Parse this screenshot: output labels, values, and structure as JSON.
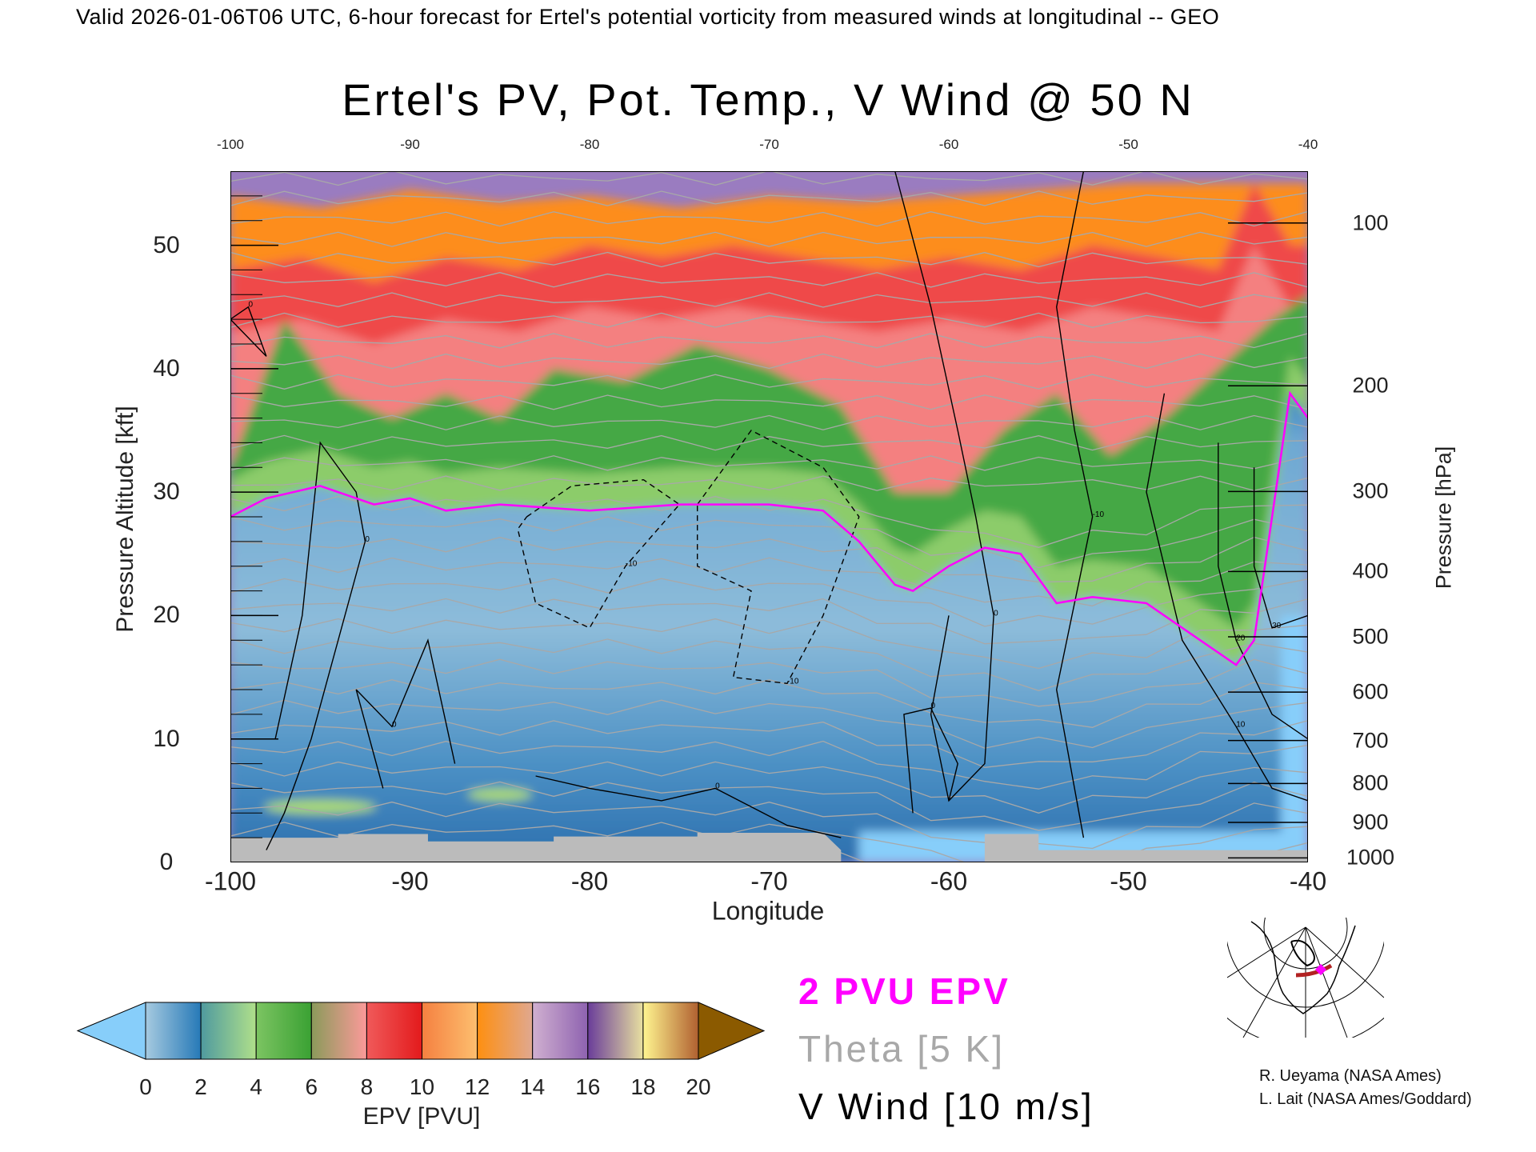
{
  "header": {
    "top_title": "Valid 2026-01-06T06 UTC, 6-hour forecast for Ertel's potential vorticity from measured winds at longitudinal -- GEO"
  },
  "chart_data": {
    "type": "heatmap",
    "title": "Ertel's PV, Pot. Temp., V Wind @ 50 N",
    "xlabel": "Longitude",
    "ylabel": "Pressure Altitude [kft]",
    "y2label": "Pressure [hPa]",
    "xlim": [
      -100,
      -40
    ],
    "ylim": [
      0,
      56
    ],
    "xticks": [
      "-100",
      "-90",
      "-80",
      "-70",
      "-60",
      "-50",
      "-40"
    ],
    "xtick_values": [
      -100,
      -90,
      -80,
      -70,
      -60,
      -50,
      -40
    ],
    "top_xticks": [
      "-100",
      "-90",
      "-80",
      "-70",
      "-60",
      "-50",
      "-40"
    ],
    "yticks": [
      "0",
      "10",
      "20",
      "30",
      "40",
      "50"
    ],
    "ytick_values": [
      0,
      10,
      20,
      30,
      40,
      50
    ],
    "y2ticks": [
      "100",
      "200",
      "300",
      "400",
      "500",
      "600",
      "700",
      "800",
      "900",
      "1000"
    ],
    "y2tick_values": [
      100,
      200,
      300,
      400,
      500,
      600,
      700,
      800,
      900,
      1000
    ],
    "tropopause_2pvu": [
      [
        -100,
        28
      ],
      [
        -98,
        29.5
      ],
      [
        -95,
        30.5
      ],
      [
        -92,
        29
      ],
      [
        -90,
        29.5
      ],
      [
        -88,
        28.5
      ],
      [
        -85,
        29
      ],
      [
        -80,
        28.5
      ],
      [
        -75,
        29
      ],
      [
        -70,
        29
      ],
      [
        -67,
        28.5
      ],
      [
        -65,
        26
      ],
      [
        -63,
        22.5
      ],
      [
        -62,
        22
      ],
      [
        -60,
        24
      ],
      [
        -58,
        25.5
      ],
      [
        -56,
        25
      ],
      [
        -54,
        21
      ],
      [
        -52,
        21.5
      ],
      [
        -49,
        21
      ],
      [
        -46,
        18
      ],
      [
        -44,
        16
      ],
      [
        -43,
        18
      ],
      [
        -42,
        28
      ],
      [
        -41,
        38
      ],
      [
        -40,
        36
      ]
    ],
    "green_top": [
      [
        -100,
        32
      ],
      [
        -97,
        44
      ],
      [
        -94,
        38
      ],
      [
        -91,
        36
      ],
      [
        -88,
        38
      ],
      [
        -85,
        36
      ],
      [
        -82,
        40
      ],
      [
        -78,
        39
      ],
      [
        -74,
        42
      ],
      [
        -70,
        40
      ],
      [
        -66,
        37
      ],
      [
        -63,
        30
      ],
      [
        -60,
        30
      ],
      [
        -57,
        35
      ],
      [
        -54,
        38
      ],
      [
        -51,
        33
      ],
      [
        -48,
        36
      ],
      [
        -45,
        40
      ],
      [
        -42,
        44
      ],
      [
        -40,
        46
      ]
    ],
    "red_top": [
      [
        -100,
        48
      ],
      [
        -96,
        49
      ],
      [
        -92,
        47
      ],
      [
        -88,
        49
      ],
      [
        -84,
        48
      ],
      [
        -80,
        50
      ],
      [
        -76,
        49
      ],
      [
        -72,
        50
      ],
      [
        -68,
        49
      ],
      [
        -64,
        48
      ],
      [
        -60,
        49
      ],
      [
        -56,
        48
      ],
      [
        -52,
        50
      ],
      [
        -48,
        49
      ],
      [
        -45,
        48
      ],
      [
        -43,
        55
      ],
      [
        -41,
        50
      ],
      [
        -40,
        50
      ]
    ],
    "orange_top": [
      [
        -100,
        54
      ],
      [
        -95,
        53
      ],
      [
        -90,
        54.5
      ],
      [
        -85,
        53.5
      ],
      [
        -80,
        54
      ],
      [
        -75,
        53
      ],
      [
        -70,
        54
      ],
      [
        -65,
        53.5
      ],
      [
        -60,
        54
      ],
      [
        -55,
        54.5
      ],
      [
        -50,
        55
      ],
      [
        -45,
        55
      ],
      [
        -40,
        55
      ]
    ],
    "vwind_contours": [
      {
        "level": "0",
        "dashed": false,
        "points": [
          [
            -100,
            10
          ],
          [
            -97.5,
            10
          ],
          [
            -96,
            20
          ],
          [
            -95,
            34
          ],
          [
            -93,
            30
          ],
          [
            -92.5,
            26
          ],
          [
            -94,
            18
          ],
          [
            -95.5,
            10
          ],
          [
            -97,
            4
          ],
          [
            -98,
            1
          ]
        ]
      },
      {
        "level": "-10",
        "dashed": true,
        "points": [
          [
            -83.5,
            28
          ],
          [
            -81,
            30.5
          ],
          [
            -77,
            31
          ],
          [
            -75,
            29
          ],
          [
            -78,
            24
          ],
          [
            -80,
            19
          ],
          [
            -83,
            21
          ],
          [
            -84,
            27
          ],
          [
            -83.5,
            28
          ]
        ]
      },
      {
        "level": "-10",
        "dashed": true,
        "points": [
          [
            -74,
            29
          ],
          [
            -71,
            35
          ],
          [
            -67,
            32
          ],
          [
            -65,
            28
          ],
          [
            -67,
            20
          ],
          [
            -69,
            14.5
          ],
          [
            -72,
            15
          ],
          [
            -71,
            22
          ],
          [
            -74,
            24
          ],
          [
            -74,
            29
          ]
        ]
      },
      {
        "level": "0",
        "dashed": false,
        "points": [
          [
            -63,
            56
          ],
          [
            -61,
            45
          ],
          [
            -59.5,
            35
          ],
          [
            -58.5,
            28
          ],
          [
            -57.5,
            20
          ],
          [
            -58,
            8
          ],
          [
            -60,
            5
          ],
          [
            -61,
            12
          ],
          [
            -60,
            20
          ]
        ]
      },
      {
        "level": "-10",
        "dashed": false,
        "points": [
          [
            -52.5,
            56
          ],
          [
            -54,
            45
          ],
          [
            -53,
            35
          ],
          [
            -52,
            28
          ],
          [
            -54,
            14
          ],
          [
            -52.5,
            2
          ]
        ]
      },
      {
        "level": "10",
        "dashed": false,
        "points": [
          [
            -48,
            38
          ],
          [
            -49,
            30
          ],
          [
            -47,
            18
          ],
          [
            -44,
            11
          ],
          [
            -42,
            6
          ],
          [
            -40,
            5
          ]
        ]
      },
      {
        "level": "20",
        "dashed": false,
        "points": [
          [
            -45,
            34
          ],
          [
            -45,
            24
          ],
          [
            -44,
            18
          ],
          [
            -42,
            12
          ],
          [
            -40,
            10
          ]
        ]
      },
      {
        "level": "30",
        "dashed": false,
        "points": [
          [
            -43,
            32
          ],
          [
            -43,
            24
          ],
          [
            -42,
            19
          ],
          [
            -40,
            20
          ]
        ]
      },
      {
        "level": "0",
        "dashed": false,
        "points": [
          [
            -100,
            44
          ],
          [
            -98,
            41
          ],
          [
            -99,
            45
          ],
          [
            -100,
            44
          ]
        ]
      },
      {
        "level": "0",
        "dashed": false,
        "points": [
          [
            -91.5,
            6
          ],
          [
            -93,
            14
          ],
          [
            -91,
            11
          ],
          [
            -89,
            18
          ],
          [
            -87.5,
            8
          ]
        ]
      },
      {
        "level": "0",
        "dashed": false,
        "points": [
          [
            -83,
            7
          ],
          [
            -80,
            6
          ],
          [
            -76,
            5
          ],
          [
            -73,
            6
          ],
          [
            -69,
            3
          ],
          [
            -66,
            2
          ]
        ]
      },
      {
        "level": "0",
        "dashed": false,
        "points": [
          [
            -62,
            4
          ],
          [
            -62.5,
            12
          ],
          [
            -61,
            12.5
          ],
          [
            -59.5,
            8
          ],
          [
            -60,
            5
          ]
        ]
      }
    ]
  },
  "colorbar": {
    "label": "EPV [PVU]",
    "ticks": [
      "0",
      "2",
      "4",
      "6",
      "8",
      "10",
      "12",
      "14",
      "16",
      "18",
      "20"
    ],
    "under_color": "#87cefa",
    "over_color": "#8b5a00",
    "segments": [
      [
        "#a6cae0",
        "#2679b7"
      ],
      [
        "#4f9a9f",
        "#b0e08a"
      ],
      [
        "#7cc462",
        "#3aa133"
      ],
      [
        "#8a9a5a",
        "#fc9a9a"
      ],
      [
        "#f05a5a",
        "#e31a1c"
      ],
      [
        "#f58040",
        "#fdbf6f"
      ],
      [
        "#fe8f10",
        "#e0a890"
      ],
      [
        "#d0b0d0",
        "#8e62b0"
      ],
      [
        "#6a3d9a",
        "#e8e0a0"
      ],
      [
        "#fff590",
        "#b06030"
      ]
    ]
  },
  "legend": {
    "pvu": "2 PVU EPV",
    "theta": "Theta [5 K]",
    "vwind": "V Wind [10 m/s]",
    "pvu_color": "#ff00ff",
    "theta_color": "#a8a8a8"
  },
  "credits": {
    "line1": "R. Ueyama (NASA Ames)",
    "line2": "L. Lait (NASA Ames/Goddard)"
  }
}
